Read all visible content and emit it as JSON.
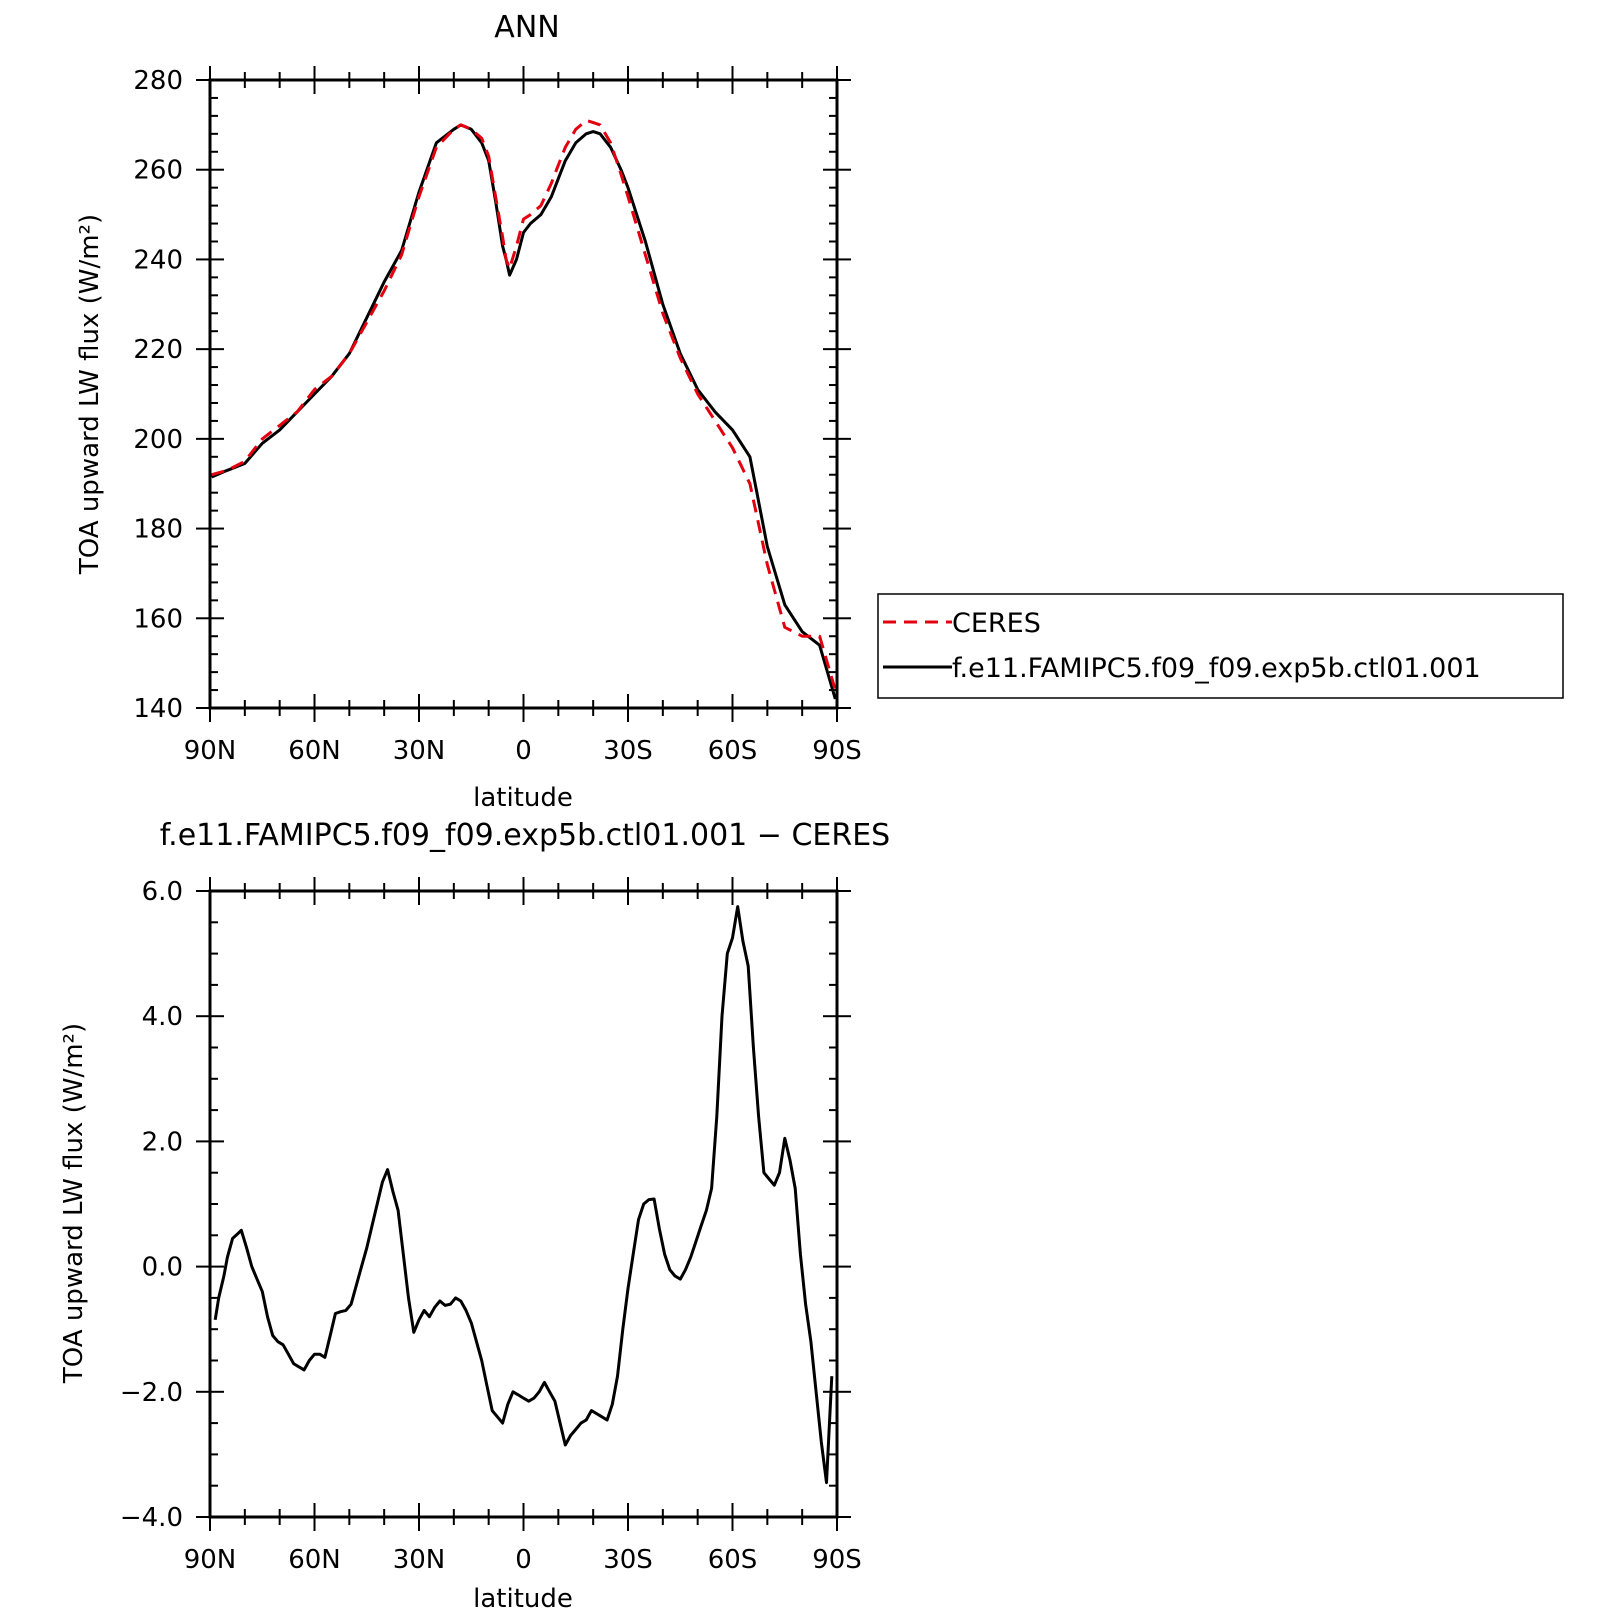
{
  "chart_data": [
    {
      "type": "line",
      "title": "ANN",
      "xlabel": "latitude",
      "ylabel": "TOA upward LW flux (W/m²)",
      "x_tick_labels": [
        "90N",
        "60N",
        "30N",
        "0",
        "30S",
        "60S",
        "90S"
      ],
      "x_tick_values": [
        90,
        60,
        30,
        0,
        -30,
        -60,
        -90
      ],
      "xlim": [
        90,
        -90
      ],
      "ylim": [
        140,
        280
      ],
      "y_ticks": [
        140,
        160,
        180,
        200,
        220,
        240,
        260,
        280
      ],
      "y_tick_labels": [
        "140",
        "160",
        "180",
        "200",
        "220",
        "240",
        "260",
        "280"
      ],
      "legend": {
        "placement": "right",
        "entries": [
          "CERES",
          "f.e11.FAMIPC5.f09_f09.exp5b.ctl01.001"
        ]
      },
      "series": [
        {
          "name": "CERES",
          "color": "#e3000f",
          "dash": "dashed",
          "x": [
            89.5,
            85,
            80,
            75,
            70,
            65,
            60,
            55,
            50,
            45,
            40,
            35,
            30,
            25,
            20,
            18,
            15,
            12,
            10,
            8,
            6,
            5,
            4,
            2,
            0,
            -2,
            -5,
            -8,
            -10,
            -12,
            -15,
            -18,
            -20,
            -22,
            -25,
            -28,
            -30,
            -35,
            -40,
            -45,
            -50,
            -55,
            -60,
            -65,
            -70,
            -75,
            -80,
            -85,
            -89.5
          ],
          "y": [
            192,
            193,
            195,
            200,
            203,
            206,
            211,
            214,
            219,
            226,
            233,
            241,
            254,
            265,
            269,
            270,
            269,
            267,
            263,
            254,
            245,
            240,
            238,
            243,
            249,
            250,
            252,
            257,
            261,
            265,
            269,
            271,
            270.5,
            270,
            266,
            259,
            254,
            241,
            228,
            218,
            210,
            204,
            198,
            190,
            172,
            158,
            156,
            156,
            144
          ]
        },
        {
          "name": "f.e11.FAMIPC5.f09_f09.exp5b.ctl01.001",
          "color": "#000000",
          "dash": "solid",
          "x": [
            89.5,
            85,
            80,
            75,
            70,
            65,
            60,
            55,
            50,
            45,
            40,
            35,
            30,
            25,
            20,
            18,
            15,
            12,
            10,
            8,
            6,
            5,
            4,
            2,
            0,
            -2,
            -5,
            -8,
            -10,
            -12,
            -15,
            -18,
            -20,
            -22,
            -25,
            -28,
            -30,
            -35,
            -40,
            -45,
            -50,
            -55,
            -60,
            -65,
            -67,
            -70,
            -75,
            -80,
            -85,
            -89.5
          ],
          "y": [
            191.5,
            193,
            194.5,
            199,
            202,
            206,
            210,
            214,
            219,
            227,
            235,
            242,
            255,
            266,
            269,
            270,
            269,
            266,
            262,
            253,
            243,
            240,
            236.5,
            240,
            246,
            248,
            250,
            254,
            258,
            262,
            266,
            268,
            268.5,
            268,
            265,
            260,
            256,
            244,
            230,
            219,
            211,
            206,
            202,
            196,
            188,
            176,
            163,
            157,
            154,
            142
          ]
        }
      ]
    },
    {
      "type": "line",
      "title": "f.e11.FAMIPC5.f09_f09.exp5b.ctl01.001 − CERES",
      "xlabel": "latitude",
      "ylabel": "TOA upward LW flux (W/m²)",
      "x_tick_labels": [
        "90N",
        "60N",
        "30N",
        "0",
        "30S",
        "60S",
        "90S"
      ],
      "x_tick_values": [
        90,
        60,
        30,
        0,
        -30,
        -60,
        -90
      ],
      "xlim": [
        90,
        -90
      ],
      "ylim": [
        -4,
        6
      ],
      "y_ticks": [
        -4,
        -2,
        0,
        2,
        4,
        6
      ],
      "y_tick_labels": [
        "−4.0",
        "−2.0",
        "0.0",
        "2.0",
        "4.0",
        "6.0"
      ],
      "series": [
        {
          "color": "#000000",
          "dash": "solid",
          "x": [
            88.5,
            87.5,
            86,
            85,
            83.5,
            82.5,
            81,
            79.5,
            78,
            76.5,
            75,
            73.5,
            72,
            70.5,
            69,
            67.5,
            66,
            64.5,
            63,
            61.5,
            60,
            58.5,
            57,
            55.5,
            54,
            52.5,
            51,
            49.5,
            48,
            46.5,
            45,
            43.5,
            42,
            40.5,
            39,
            37.5,
            36,
            34.5,
            33,
            31.5,
            30,
            28.5,
            27,
            25.5,
            24,
            22.5,
            21,
            19.5,
            18,
            16.5,
            15,
            13.5,
            12,
            10.5,
            9,
            7.5,
            6,
            4.5,
            3,
            1.5,
            0,
            -1.5,
            -3,
            -4.5,
            -6,
            -7.5,
            -9,
            -10.5,
            -12,
            -13.5,
            -15,
            -16.5,
            -18,
            -19.5,
            -21,
            -22.5,
            -24,
            -25.5,
            -27,
            -28.5,
            -30,
            -31.5,
            -33,
            -34.5,
            -36,
            -37.5,
            -39,
            -40.5,
            -42,
            -43.5,
            -45,
            -46.5,
            -48,
            -49.5,
            -51,
            -52.5,
            -54,
            -55.5,
            -57,
            -58.5,
            -60,
            -61.5,
            -63,
            -64.5,
            -66,
            -67.5,
            -69,
            -70.5,
            -72,
            -73.5,
            -75,
            -76.5,
            -78,
            -79.5,
            -81,
            -82.5,
            -84,
            -85.5,
            -87,
            -88.5
          ],
          "y": [
            -0.85,
            -0.5,
            -0.15,
            0.15,
            0.45,
            0.5,
            0.58,
            0.3,
            0.0,
            -0.2,
            -0.4,
            -0.8,
            -1.1,
            -1.2,
            -1.25,
            -1.4,
            -1.55,
            -1.6,
            -1.65,
            -1.5,
            -1.4,
            -1.4,
            -1.45,
            -1.1,
            -0.75,
            -0.72,
            -0.7,
            -0.6,
            -0.3,
            0.0,
            0.3,
            0.65,
            1.0,
            1.35,
            1.55,
            1.2,
            0.9,
            0.2,
            -0.5,
            -1.05,
            -0.85,
            -0.7,
            -0.8,
            -0.65,
            -0.55,
            -0.62,
            -0.6,
            -0.5,
            -0.55,
            -0.7,
            -0.9,
            -1.2,
            -1.5,
            -1.9,
            -2.3,
            -2.4,
            -2.5,
            -2.2,
            -2.0,
            -2.05,
            -2.1,
            -2.15,
            -2.1,
            -2.0,
            -1.85,
            -2.0,
            -2.15,
            -2.5,
            -2.85,
            -2.7,
            -2.6,
            -2.5,
            -2.45,
            -2.3,
            -2.35,
            -2.4,
            -2.45,
            -2.2,
            -1.75,
            -1.0,
            -0.35,
            0.2,
            0.75,
            1.0,
            1.07,
            1.08,
            0.6,
            0.2,
            -0.05,
            -0.15,
            -0.2,
            -0.05,
            0.15,
            0.4,
            0.65,
            0.9,
            1.25,
            2.4,
            4.0,
            5.0,
            5.25,
            5.75,
            5.2,
            4.8,
            3.5,
            2.4,
            1.5,
            1.4,
            1.3,
            1.5,
            2.05,
            1.7,
            1.25,
            0.2,
            -0.6,
            -1.2,
            -2.0,
            -2.8,
            -3.45,
            -1.75
          ]
        }
      ]
    }
  ]
}
